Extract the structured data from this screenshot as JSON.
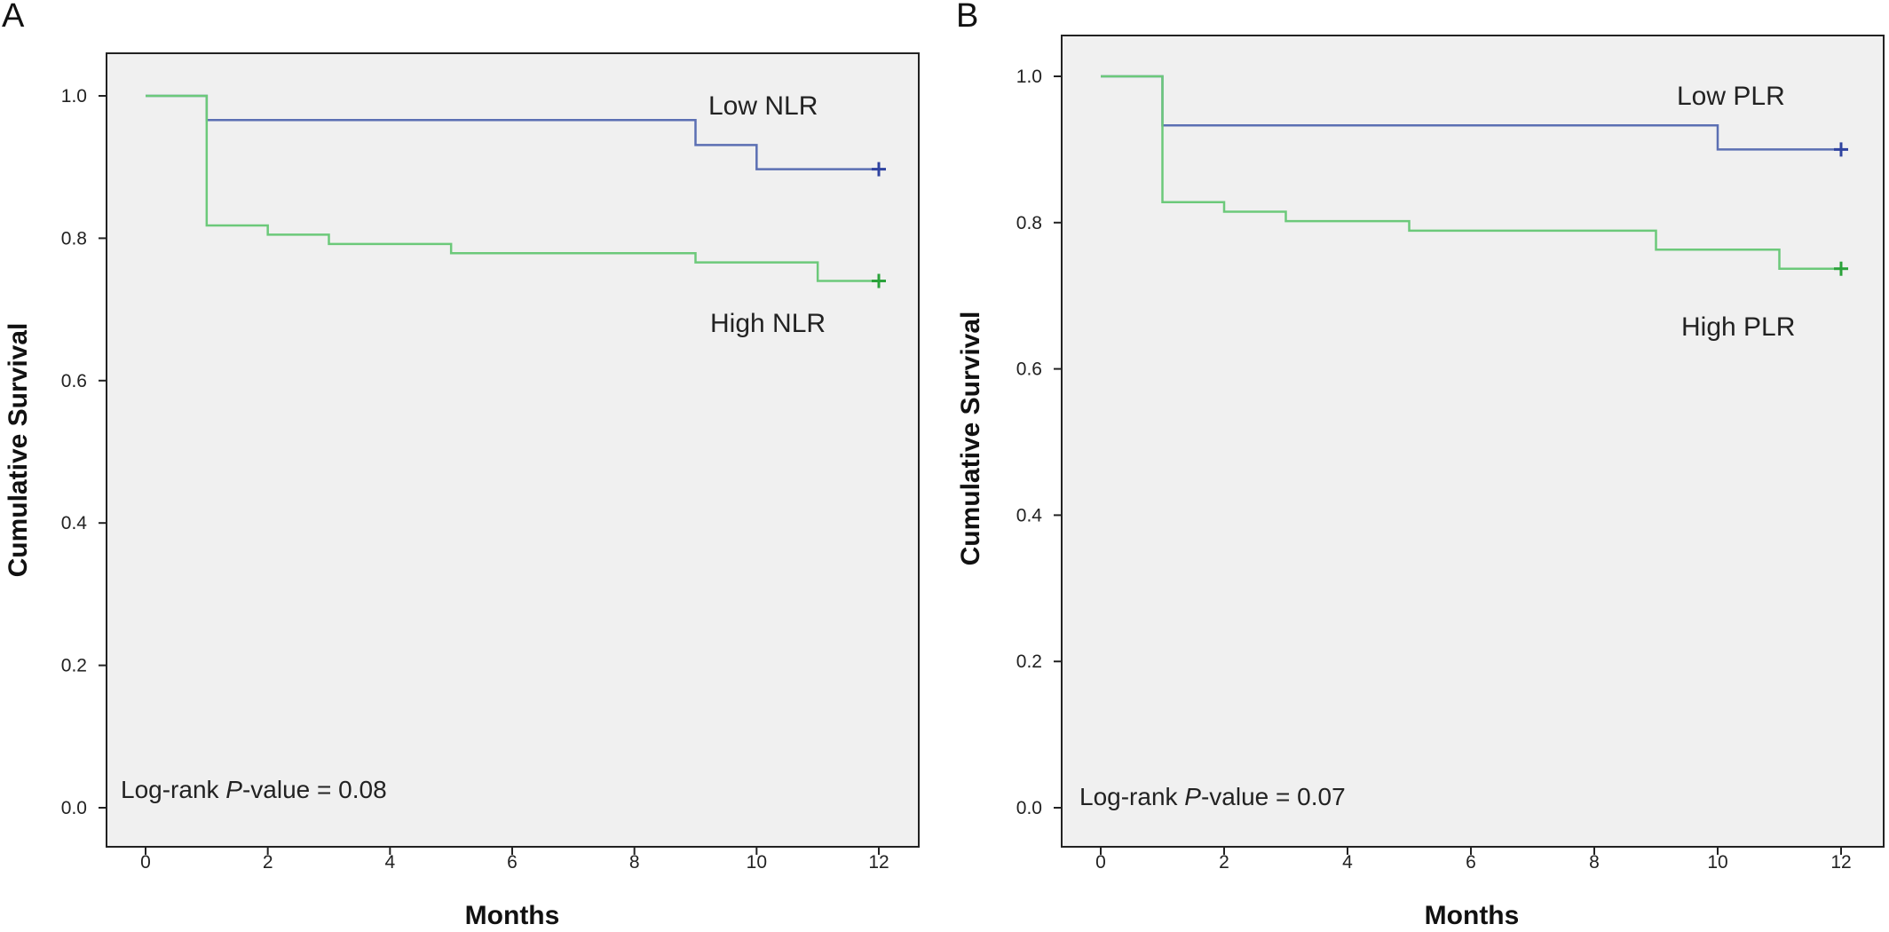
{
  "chart_data": [
    {
      "panel": "A",
      "type": "line",
      "step": "km",
      "xlabel": "Months",
      "ylabel": "Cumulative Survival",
      "xlim": [
        0,
        12
      ],
      "ylim": [
        0.0,
        1.0
      ],
      "xticks": [
        0,
        2,
        4,
        6,
        8,
        10,
        12
      ],
      "yticks": [
        0.0,
        0.2,
        0.4,
        0.6,
        0.8,
        1.0
      ],
      "xtick_labels": [
        "0",
        "2",
        "4",
        "6",
        "8",
        "10",
        "12"
      ],
      "ytick_labels": [
        "0.0",
        "0.2",
        "0.4",
        "0.6",
        "0.8",
        "1.0"
      ],
      "grid": false,
      "background": "#f0f0f0",
      "annotation": {
        "prefix": "Log-rank ",
        "italic": "P",
        "suffix": "-value = 0.08"
      },
      "series": [
        {
          "name": "Low NLR",
          "color": "#5b6fb3",
          "censor_color": "#2f43a0",
          "points": [
            [
              0,
              1.0
            ],
            [
              1,
              0.966
            ],
            [
              9,
              0.931
            ],
            [
              10,
              0.897
            ],
            [
              12,
              0.897
            ]
          ],
          "censored": [
            [
              12,
              0.897
            ]
          ]
        },
        {
          "name": "High NLR",
          "color": "#6cc97a",
          "censor_color": "#2aa23a",
          "points": [
            [
              0,
              1.0
            ],
            [
              1,
              0.818
            ],
            [
              2,
              0.805
            ],
            [
              3,
              0.792
            ],
            [
              5,
              0.779
            ],
            [
              9,
              0.766
            ],
            [
              11,
              0.74
            ],
            [
              12,
              0.74
            ]
          ],
          "censored": [
            [
              12,
              0.74
            ]
          ]
        }
      ]
    },
    {
      "panel": "B",
      "type": "line",
      "step": "km",
      "xlabel": "Months",
      "ylabel": "Cumulative Survival",
      "xlim": [
        0,
        12
      ],
      "ylim": [
        0.0,
        1.0
      ],
      "xticks": [
        0,
        2,
        4,
        6,
        8,
        10,
        12
      ],
      "yticks": [
        0.0,
        0.2,
        0.4,
        0.6,
        0.8,
        1.0
      ],
      "xtick_labels": [
        "0",
        "2",
        "4",
        "6",
        "8",
        "10",
        "12"
      ],
      "ytick_labels": [
        "0.0",
        "0.2",
        "0.4",
        "0.6",
        "0.8",
        "1.0"
      ],
      "grid": false,
      "background": "#f0f0f0",
      "annotation": {
        "prefix": "Log-rank ",
        "italic": "P",
        "suffix": "-value = 0.07"
      },
      "series": [
        {
          "name": "Low PLR",
          "color": "#5b6fb3",
          "censor_color": "#2f43a0",
          "points": [
            [
              0,
              1.0
            ],
            [
              1,
              0.933
            ],
            [
              10,
              0.9
            ],
            [
              12,
              0.9
            ]
          ],
          "censored": [
            [
              12,
              0.9
            ]
          ]
        },
        {
          "name": "High PLR",
          "color": "#6cc97a",
          "censor_color": "#2aa23a",
          "points": [
            [
              0,
              1.0
            ],
            [
              1,
              0.828
            ],
            [
              2,
              0.815
            ],
            [
              3,
              0.802
            ],
            [
              5,
              0.789
            ],
            [
              9,
              0.763
            ],
            [
              11,
              0.737
            ],
            [
              12,
              0.737
            ]
          ],
          "censored": [
            [
              12,
              0.737
            ]
          ]
        }
      ]
    }
  ]
}
